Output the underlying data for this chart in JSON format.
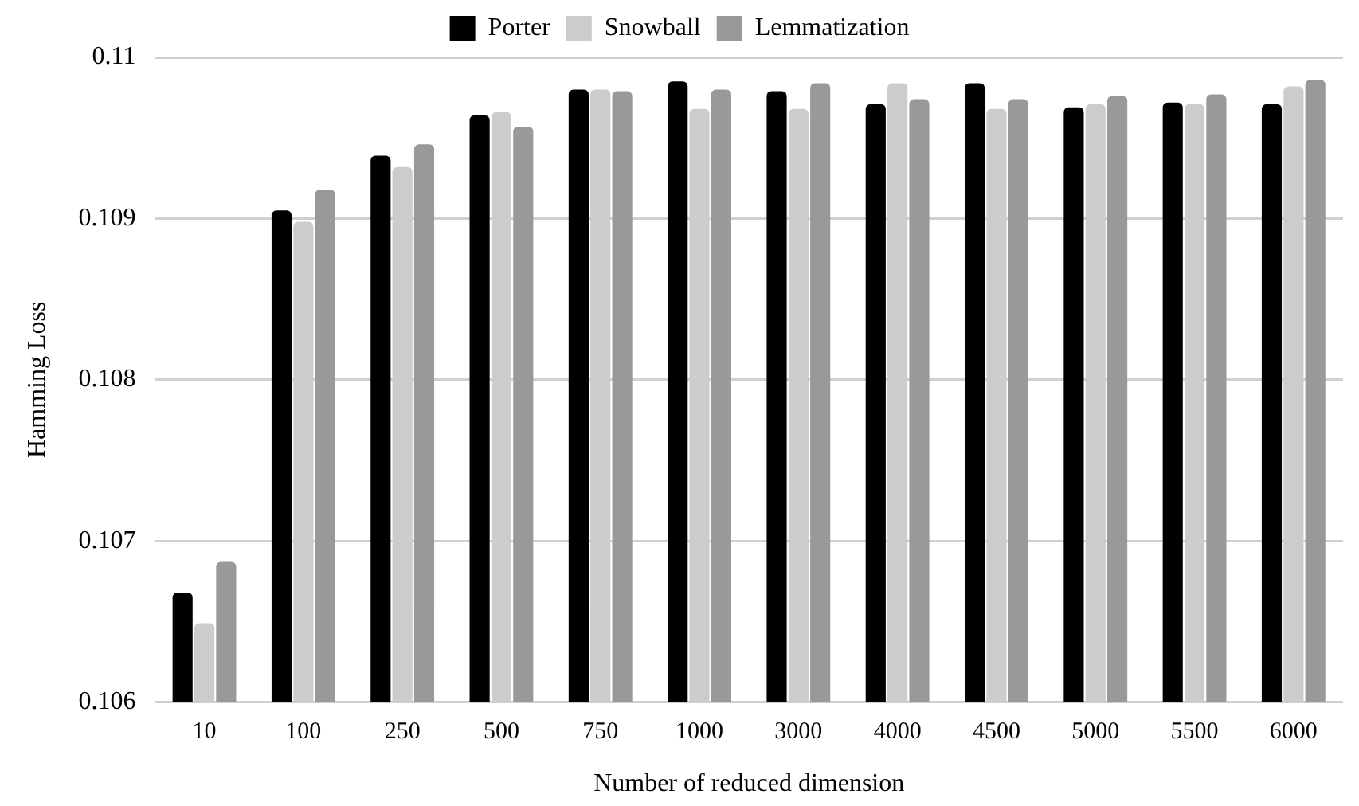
{
  "chart_data": {
    "type": "bar",
    "xlabel": "Number of reduced dimension",
    "ylabel": "Hamming Loss",
    "categories": [
      "10",
      "100",
      "250",
      "500",
      "750",
      "1000",
      "3000",
      "4000",
      "4500",
      "5000",
      "5500",
      "6000"
    ],
    "series": [
      {
        "name": "Porter",
        "color": "#000000",
        "values": [
          0.10668,
          0.10905,
          0.10939,
          0.10964,
          0.1098,
          0.10985,
          0.10979,
          0.10971,
          0.10984,
          0.10969,
          0.10972,
          0.10971
        ]
      },
      {
        "name": "Snowball",
        "color": "#cccccc",
        "values": [
          0.10649,
          0.10898,
          0.10932,
          0.10966,
          0.1098,
          0.10968,
          0.10968,
          0.10984,
          0.10968,
          0.10971,
          0.10971,
          0.10982
        ]
      },
      {
        "name": "Lemmatization",
        "color": "#999999",
        "values": [
          0.10687,
          0.10918,
          0.10946,
          0.10957,
          0.10979,
          0.1098,
          0.10984,
          0.10974,
          0.10974,
          0.10976,
          0.10977,
          0.10986
        ]
      }
    ],
    "ylim": [
      0.106,
      0.11
    ],
    "yticks": [
      0.106,
      0.107,
      0.108,
      0.109,
      0.11
    ],
    "grid": "y",
    "legend": "top"
  }
}
